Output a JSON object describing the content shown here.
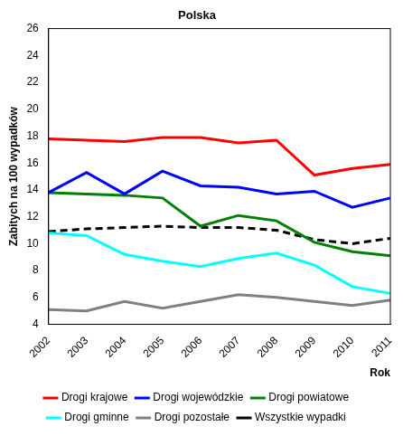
{
  "chart_data": {
    "type": "line",
    "title": "Polska",
    "x_label": "Rok",
    "y_label": "Zabitych na 100 wypadków",
    "categories": [
      "2002",
      "2003",
      "2004",
      "2005",
      "2006",
      "2007",
      "2008",
      "2009",
      "2010",
      "2011"
    ],
    "series": [
      {
        "name": "Drogi krajowe",
        "color": "#ff0000",
        "line_style": "solid",
        "values": [
          17.8,
          17.7,
          17.6,
          17.9,
          17.9,
          17.5,
          17.7,
          15.1,
          15.6,
          15.9
        ]
      },
      {
        "name": "Drogi wojewódzkie",
        "color": "#0000ff",
        "line_style": "solid",
        "values": [
          13.8,
          15.3,
          13.7,
          15.4,
          14.3,
          14.2,
          13.7,
          13.9,
          12.7,
          13.4
        ]
      },
      {
        "name": "Drogi powiatowe",
        "color": "#008000",
        "line_style": "solid",
        "values": [
          13.8,
          13.7,
          13.6,
          13.4,
          11.3,
          12.1,
          11.7,
          10.1,
          9.4,
          9.1
        ]
      },
      {
        "name": "Drogi gminne",
        "color": "#00ffff",
        "line_style": "solid",
        "values": [
          10.8,
          10.6,
          9.2,
          8.7,
          8.3,
          8.9,
          9.3,
          8.4,
          6.8,
          6.3
        ]
      },
      {
        "name": "Drogi pozostałe",
        "color": "#808080",
        "line_style": "solid",
        "values": [
          5.1,
          5.0,
          5.7,
          5.2,
          5.7,
          6.2,
          6.0,
          5.7,
          5.4,
          5.8
        ]
      },
      {
        "name": "Wszystkie wypadki",
        "color": "#000000",
        "line_style": "dashed",
        "values": [
          10.9,
          11.1,
          11.2,
          11.3,
          11.2,
          11.2,
          11.0,
          10.3,
          10.0,
          10.4
        ]
      }
    ],
    "ylim": [
      4,
      26
    ],
    "yticks": [
      4,
      6,
      8,
      10,
      12,
      14,
      16,
      18,
      20,
      22,
      24,
      26
    ],
    "grid": false,
    "legend": "bottom"
  }
}
